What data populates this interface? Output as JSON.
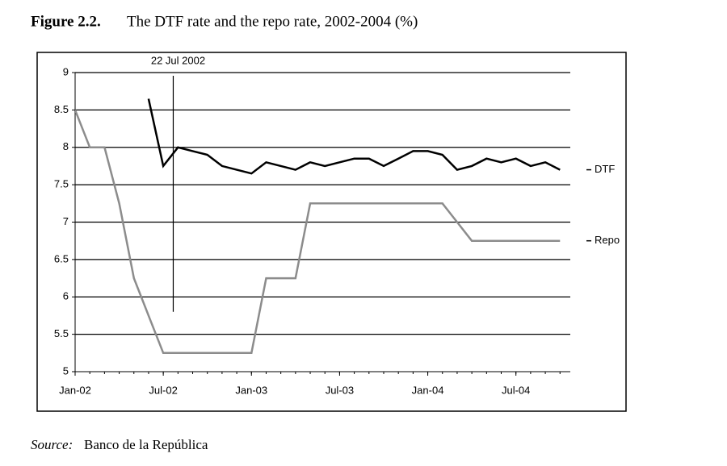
{
  "chart_data": {
    "type": "line",
    "figure_label": "Figure 2.2.",
    "title": "The DTF rate and the repo rate, 2002-2004 (%)",
    "source_label": "Source:",
    "source": "Banco de la República",
    "x": [
      "2002-01",
      "2002-02",
      "2002-03",
      "2002-04",
      "2002-05",
      "2002-06",
      "2002-07",
      "2002-08",
      "2002-09",
      "2002-10",
      "2002-11",
      "2002-12",
      "2003-01",
      "2003-02",
      "2003-03",
      "2003-04",
      "2003-05",
      "2003-06",
      "2003-07",
      "2003-08",
      "2003-09",
      "2003-10",
      "2003-11",
      "2003-12",
      "2004-01",
      "2004-02",
      "2004-03",
      "2004-04",
      "2004-05",
      "2004-06",
      "2004-07",
      "2004-08",
      "2004-09",
      "2004-10"
    ],
    "series": [
      {
        "name": "DTF",
        "color": "#000000",
        "values": [
          null,
          null,
          null,
          null,
          null,
          8.65,
          7.75,
          8.0,
          7.95,
          7.9,
          7.75,
          7.7,
          7.65,
          7.8,
          7.75,
          7.7,
          7.8,
          7.75,
          7.8,
          7.85,
          7.85,
          7.75,
          7.85,
          7.95,
          7.95,
          7.9,
          7.7,
          7.75,
          7.85,
          7.8,
          7.85,
          7.75,
          7.8,
          7.7
        ]
      },
      {
        "name": "Repo",
        "color": "#8c8c8c",
        "values": [
          8.5,
          8,
          8,
          7.25,
          6.25,
          5.75,
          5.25,
          5.25,
          5.25,
          5.25,
          5.25,
          5.25,
          5.25,
          6.25,
          6.25,
          6.25,
          7.25,
          7.25,
          7.25,
          7.25,
          7.25,
          7.25,
          7.25,
          7.25,
          7.25,
          7.25,
          7,
          6.75,
          6.75,
          6.75,
          6.75,
          6.75,
          6.75,
          6.75
        ]
      }
    ],
    "xlim": [
      "2002-01",
      "2004-10"
    ],
    "xticks": [
      {
        "value": "2002-01",
        "label": "Jan-02"
      },
      {
        "value": "2002-07",
        "label": "Jul-02"
      },
      {
        "value": "2003-01",
        "label": "Jan-03"
      },
      {
        "value": "2003-07",
        "label": "Jul-03"
      },
      {
        "value": "2004-01",
        "label": "Jan-04"
      },
      {
        "value": "2004-07",
        "label": "Jul-04"
      }
    ],
    "ylim": [
      5,
      9
    ],
    "yticks": [
      5,
      5.5,
      6,
      6.5,
      7,
      7.5,
      8,
      8.5,
      9
    ],
    "grid": true,
    "annotation": {
      "text": "22 Jul 2002",
      "x": "2002-07-22"
    }
  }
}
